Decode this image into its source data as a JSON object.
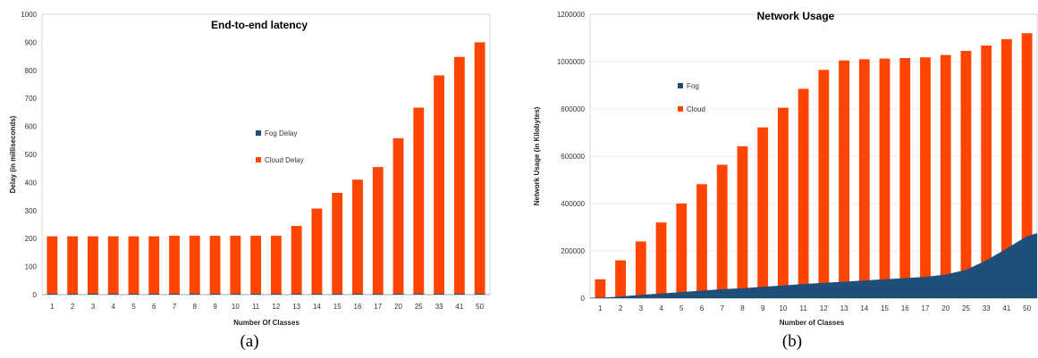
{
  "colors": {
    "fog": "#1f4e79",
    "cloud": "#ff4500"
  },
  "chart_data": [
    {
      "type": "bar",
      "title": "End-to-end latency",
      "caption": "(a)",
      "xlabel": "Number Of Classes",
      "ylabel": "Delay (in milliseconds)",
      "ylim": [
        0,
        1000
      ],
      "yticks": [
        0,
        100,
        200,
        300,
        400,
        500,
        600,
        700,
        800,
        900,
        1000
      ],
      "categories": [
        "1",
        "2",
        "3",
        "4",
        "5",
        "6",
        "7",
        "8",
        "9",
        "10",
        "11",
        "12",
        "13",
        "14",
        "15",
        "16",
        "17",
        "20",
        "25",
        "33",
        "41",
        "50"
      ],
      "series": [
        {
          "name": "Fog Delay",
          "values": [
            3,
            3,
            3,
            3,
            3,
            3,
            3,
            3,
            3,
            3,
            3,
            3,
            3,
            3,
            3,
            3,
            3,
            3,
            3,
            3,
            3,
            3
          ]
        },
        {
          "name": "Cloud Delay",
          "values": [
            208,
            208,
            208,
            208,
            208,
            208,
            210,
            210,
            210,
            210,
            210,
            210,
            245,
            307,
            363,
            410,
            455,
            558,
            667,
            782,
            848,
            900
          ]
        }
      ],
      "legend": "center-right",
      "grid": false
    },
    {
      "type": "bar-area",
      "title": "Network Usage",
      "caption": "(b)",
      "xlabel": "Number of Classes",
      "ylabel": "Network Usage (in Kilobytes)",
      "ylim": [
        0,
        1200000
      ],
      "yticks": [
        0,
        200000,
        400000,
        600000,
        800000,
        1000000,
        1200000
      ],
      "categories": [
        "1",
        "2",
        "3",
        "4",
        "5",
        "6",
        "7",
        "8",
        "9",
        "10",
        "11",
        "12",
        "13",
        "14",
        "15",
        "16",
        "17",
        "20",
        "25",
        "33",
        "41",
        "50"
      ],
      "series": [
        {
          "name": "Fog",
          "values": [
            2000,
            7000,
            14000,
            20000,
            26000,
            32000,
            38000,
            42000,
            48000,
            54000,
            60000,
            65000,
            70000,
            75000,
            80000,
            85000,
            90000,
            100000,
            120000,
            160000,
            210000,
            262000
          ]
        },
        {
          "name": "Cloud",
          "values": [
            80000,
            160000,
            240000,
            320000,
            400000,
            482000,
            564000,
            642000,
            722000,
            805000,
            885000,
            965000,
            1005000,
            1010000,
            1013000,
            1015000,
            1018000,
            1028000,
            1045000,
            1068000,
            1095000,
            1120000
          ]
        }
      ],
      "legend": "center-left",
      "grid": true
    }
  ]
}
